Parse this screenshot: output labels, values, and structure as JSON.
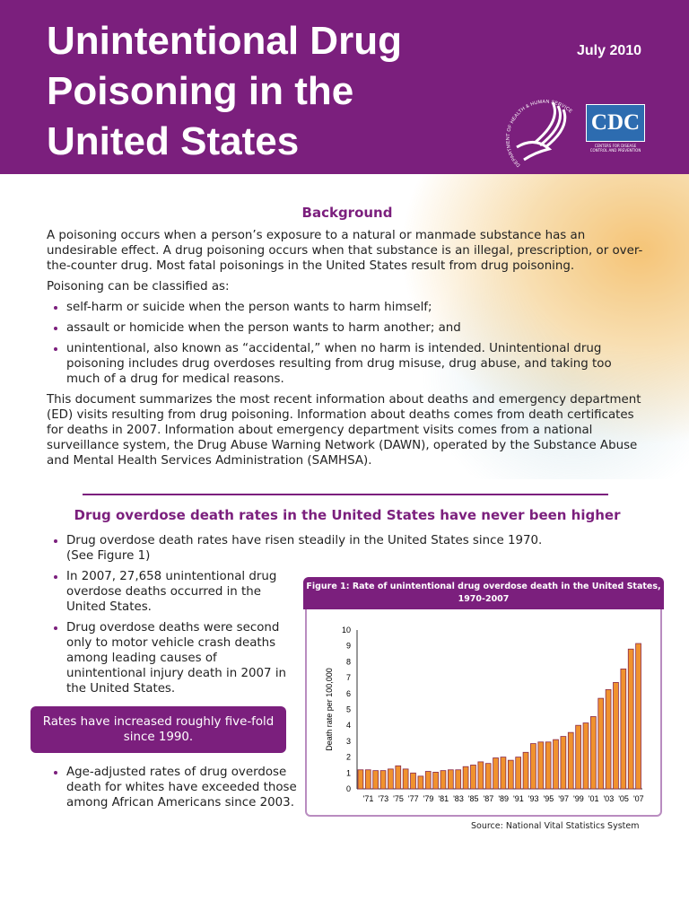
{
  "header": {
    "title": "Unintentional Drug\nPoisoning in the\nUnited States",
    "date": "July 2010",
    "hhs_seal_text": "DEPARTMENT OF HEALTH & HUMAN SERVICES · USA",
    "cdc_logo": "CDC",
    "cdc_logo_sub": "CENTERS FOR DISEASE CONTROL AND PREVENTION",
    "brand_color": "#7b1f7d"
  },
  "background": {
    "heading": "Background",
    "p1": "A poisoning occurs when a person’s exposure to a natural or manmade substance has an undesirable effect.  A drug poisoning occurs when that substance is an illegal, prescription, or over-the-counter drug.  Most fatal poisonings in the United States result from drug poisoning.",
    "p2": "Poisoning can be classified as:",
    "bullets": [
      "self-harm or suicide when the person wants to harm himself;",
      "assault or homicide when the person wants to harm another; and",
      "unintentional, also known as “accidental,” when no harm is intended. Unintentional drug poisoning includes drug overdoses resulting from drug misuse, drug abuse, and taking too much of a drug for medical reasons."
    ],
    "p3": "This document summarizes the most recent information about deaths and emergency department (ED) visits resulting from drug poisoning. Information about deaths comes from death certificates for deaths in 2007. Information about emergency department visits comes from a national surveillance system, the Drug Abuse Warning Network (DAWN), operated by the Substance Abuse and Mental Health Services Administration (SAMHSA)."
  },
  "section2": {
    "heading": "Drug overdose death rates in the United States have never been higher",
    "bullets": [
      "Drug overdose death rates have risen steadily in the United States since 1970. (See Figure 1)",
      "In 2007, 27,658 unintentional drug overdose deaths occurred in the United States.",
      "Drug overdose deaths were second only to motor vehicle crash deaths among leading causes of unintentional injury death in 2007 in the United States.",
      "Age-adjusted rates of drug overdose death for whites have exceeded those among African Americans since 2003."
    ],
    "callout": "Rates have increased roughly five-fold since 1990.",
    "source": "Source: National Vital Statistics System"
  },
  "chart_data": {
    "type": "bar",
    "title": "Figure 1: Rate of unintentional drug overdose death in the United States, 1970-2007",
    "ylabel": "Death rate per 100,000",
    "xlabel": "",
    "ylim": [
      0,
      10
    ],
    "yticks": [
      0,
      1,
      2,
      3,
      4,
      5,
      6,
      7,
      8,
      9,
      10
    ],
    "categories": [
      1970,
      1971,
      1972,
      1973,
      1974,
      1975,
      1976,
      1977,
      1978,
      1979,
      1980,
      1981,
      1982,
      1983,
      1984,
      1985,
      1986,
      1987,
      1988,
      1989,
      1990,
      1991,
      1992,
      1993,
      1994,
      1995,
      1996,
      1997,
      1998,
      1999,
      2000,
      2001,
      2002,
      2003,
      2004,
      2005,
      2006,
      2007
    ],
    "xtick_labels": [
      "'71",
      "'73",
      "'75",
      "'77",
      "'79",
      "'81",
      "'83",
      "'85",
      "'87",
      "'89",
      "'91",
      "'93",
      "'95",
      "'97",
      "'99",
      "'01",
      "'03",
      "'05",
      "'07"
    ],
    "values": [
      1.2,
      1.2,
      1.15,
      1.15,
      1.25,
      1.45,
      1.25,
      1.0,
      0.8,
      1.1,
      1.05,
      1.15,
      1.2,
      1.2,
      1.4,
      1.5,
      1.7,
      1.6,
      1.95,
      2.0,
      1.8,
      2.0,
      2.3,
      2.85,
      2.95,
      2.95,
      3.1,
      3.3,
      3.55,
      4.0,
      4.15,
      4.55,
      5.7,
      6.25,
      6.7,
      7.55,
      8.8,
      9.15
    ],
    "bar_color": "#f0922e",
    "bar_edge": "#8a2a4a",
    "grid": false,
    "legend": "none"
  }
}
